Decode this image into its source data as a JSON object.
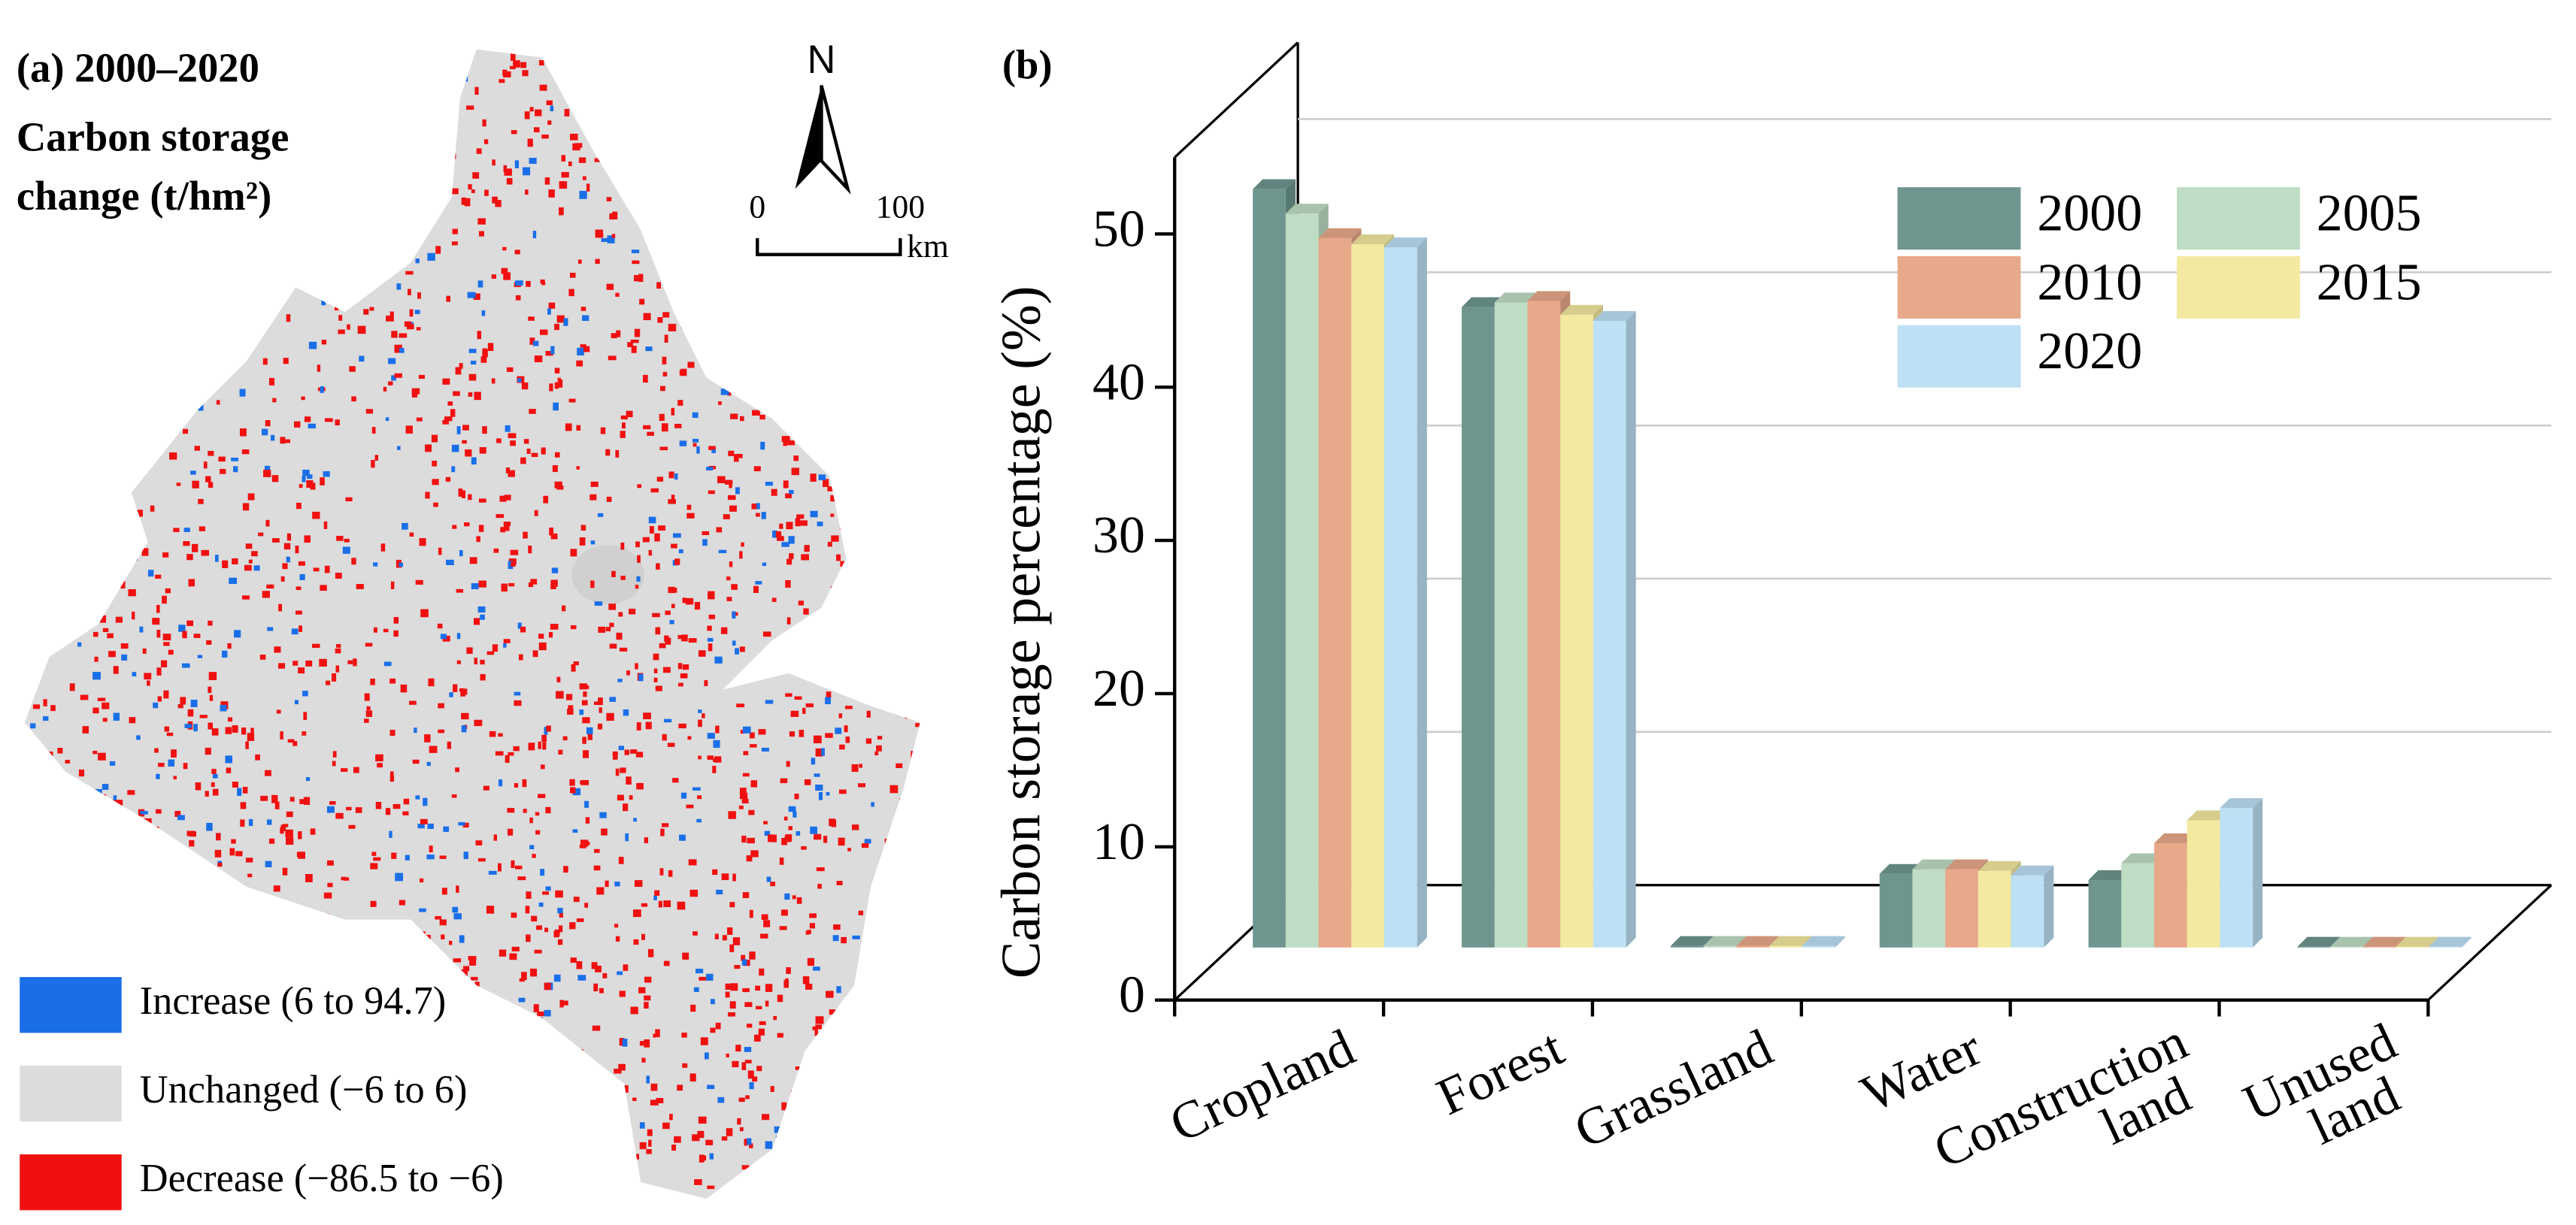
{
  "map_panel": {
    "title": "(a) 2000–2020",
    "subtitle_line1": "Carbon storage",
    "subtitle_line2": "change (t/hm²)",
    "north": "N",
    "scale_start": "0",
    "scale_end": "100",
    "scale_unit": "km",
    "legend": [
      {
        "label": "Increase (6 to 94.7)",
        "color": "#1a6fe8"
      },
      {
        "label": "Unchanged (−6 to 6)",
        "color": "#dcdcdc"
      },
      {
        "label": "Decrease (−86.5 to −6)",
        "color": "#f01010"
      }
    ]
  },
  "chart_data": {
    "type": "bar3d",
    "title": "(b)",
    "y_label": "Carbon storage percentage (%)",
    "categories": [
      "Cropland",
      "Forest",
      "Grassland",
      "Water",
      "Construction land",
      "Unused land"
    ],
    "series": [
      {
        "name": "2000",
        "color": "#6e968f",
        "values": [
          49.5,
          41.8,
          0.1,
          4.8,
          4.4,
          0.05
        ]
      },
      {
        "name": "2005",
        "color": "#bfdcc4",
        "values": [
          47.9,
          42.1,
          0.1,
          5.1,
          5.5,
          0.05
        ]
      },
      {
        "name": "2010",
        "color": "#e8a88a",
        "values": [
          46.3,
          42.2,
          0.1,
          5.1,
          6.8,
          0.05
        ]
      },
      {
        "name": "2015",
        "color": "#f3e9a0",
        "values": [
          45.9,
          41.3,
          0.1,
          5.0,
          8.3,
          0.05
        ]
      },
      {
        "name": "2020",
        "color": "#bde0f5",
        "values": [
          45.7,
          40.9,
          0.1,
          4.7,
          9.1,
          0.05
        ]
      }
    ],
    "ylim": [
      0,
      55
    ],
    "yticks": [
      0,
      10,
      20,
      30,
      40,
      50
    ],
    "grid": true,
    "legend_position": "upper right"
  }
}
